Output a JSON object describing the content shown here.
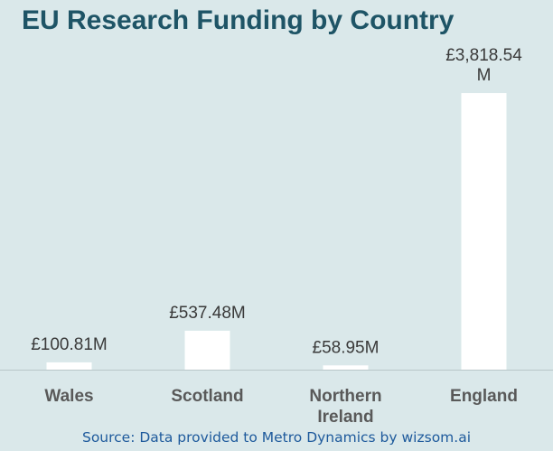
{
  "chart_data": {
    "type": "bar",
    "title": "EU Research Funding by Country",
    "categories": [
      "Wales",
      "Scotland",
      "Northern Ireland",
      "England"
    ],
    "category_lines": [
      [
        "Wales"
      ],
      [
        "Scotland"
      ],
      [
        "Northern",
        "Ireland"
      ],
      [
        "England"
      ]
    ],
    "values": [
      100.81,
      537.48,
      58.95,
      3818.54
    ],
    "value_labels": [
      [
        "£100.81M"
      ],
      [
        "£537.48M"
      ],
      [
        "£58.95M"
      ],
      [
        "£3,818.54",
        "M"
      ]
    ],
    "unit": "£M",
    "xlabel": "",
    "ylabel": "",
    "ylim": [
      0,
      3818.54
    ],
    "grid": false,
    "legend": "none",
    "source": "Source: Data provided to Metro Dynamics by wizsom.ai",
    "colors": {
      "background": "#dae8ea",
      "bar": "#ffffff",
      "title": "#1e5466",
      "axis_labels": "#595959",
      "value_labels": "#3a3a3a",
      "baseline": "#b9c6c8",
      "source": "#1e5a9c"
    }
  }
}
